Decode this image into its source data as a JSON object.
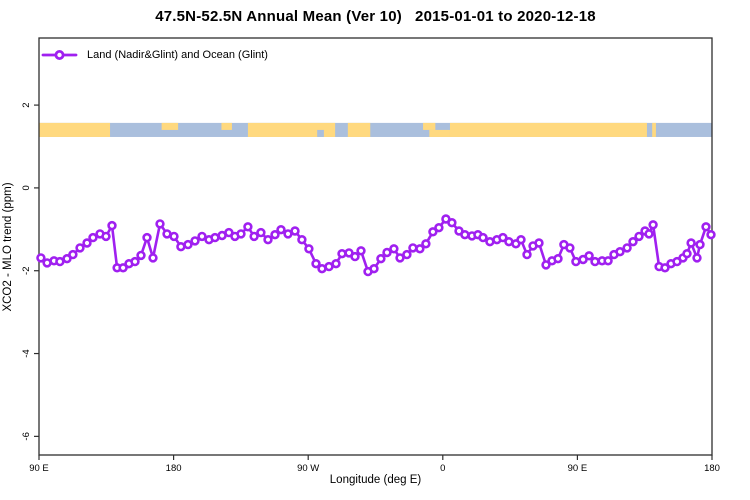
{
  "header": {
    "title": "47.5N-52.5N Annual Mean (Ver 10)   2015-01-01 to 2020-12-18"
  },
  "legend": {
    "label": "Land (Nadir&Glint) and Ocean (Glint)",
    "marker": "open-circle-on-line"
  },
  "colors": {
    "series": "#a020f0",
    "marker_fill": "#ffffff",
    "land": "#ffd97f",
    "ocean": "#aabfdd",
    "frame": "#2e2e2e",
    "text": "#000000"
  },
  "chart_data": {
    "type": "line",
    "title": "47.5N-52.5N Annual Mean (Ver 10)   2015-01-01 to 2020-12-18",
    "xlabel": "Longitude (deg E)",
    "ylabel": "XCO2 - MLO trend (ppm)",
    "legend_position": "top-left",
    "grid": false,
    "x_axis_note": "longitude axis spans 450 degrees wrapping: 90E -> 180 -> 90W -> 0 -> 90E -> 180; stored x is axis degree 90..540",
    "xlim_axis_deg": [
      90,
      540
    ],
    "ylim": [
      -6.45,
      3.62
    ],
    "x_ticks": [
      {
        "pos": 90,
        "label": "90 E"
      },
      {
        "pos": 180,
        "label": "180"
      },
      {
        "pos": 270,
        "label": "90 W"
      },
      {
        "pos": 360,
        "label": "0"
      },
      {
        "pos": 450,
        "label": "90 E"
      },
      {
        "pos": 540,
        "label": "180"
      }
    ],
    "y_ticks": [
      {
        "pos": 2,
        "label": "2"
      },
      {
        "pos": 0,
        "label": "0"
      },
      {
        "pos": -2,
        "label": "-2"
      },
      {
        "pos": -4,
        "label": "-4"
      },
      {
        "pos": -6,
        "label": "-6"
      }
    ],
    "map_band": {
      "description": "land/ocean mask strip for latitude band 47.5N-52.5N",
      "y_range": [
        1.23,
        1.57
      ],
      "land_segments": [
        {
          "from": 90,
          "to": 137.5,
          "part": "full"
        },
        {
          "from": 172,
          "to": 183,
          "part": "top"
        },
        {
          "from": 212,
          "to": 219,
          "part": "top"
        },
        {
          "from": 229.7,
          "to": 288,
          "part": "full"
        },
        {
          "from": 296.5,
          "to": 311.5,
          "part": "full"
        },
        {
          "from": 346.8,
          "to": 355,
          "part": "top"
        },
        {
          "from": 351,
          "to": 364.8,
          "part": "bottom"
        },
        {
          "from": 364.8,
          "to": 496.5,
          "part": "full"
        },
        {
          "from": 500,
          "to": 502.5,
          "part": "full"
        }
      ],
      "ocean_notches": [
        {
          "from": 276,
          "to": 280.5,
          "part": "bottom"
        }
      ]
    },
    "series": [
      {
        "name": "Land (Nadir&Glint) and Ocean (Glint)",
        "marker": "open-circle",
        "color": "#a020f0",
        "points": [
          [
            91.3,
            -1.69
          ],
          [
            95.4,
            -1.81
          ],
          [
            100,
            -1.76
          ],
          [
            104,
            -1.78
          ],
          [
            108.7,
            -1.71
          ],
          [
            112.7,
            -1.61
          ],
          [
            117.4,
            -1.45
          ],
          [
            122.1,
            -1.33
          ],
          [
            126.1,
            -1.2
          ],
          [
            130.8,
            -1.11
          ],
          [
            134.8,
            -1.17
          ],
          [
            138.8,
            -0.91
          ],
          [
            142.2,
            -1.93
          ],
          [
            146.2,
            -1.93
          ],
          [
            150.2,
            -1.83
          ],
          [
            154.2,
            -1.78
          ],
          [
            158.2,
            -1.63
          ],
          [
            162.2,
            -1.2
          ],
          [
            166.2,
            -1.69
          ],
          [
            170.9,
            -0.87
          ],
          [
            175.6,
            -1.11
          ],
          [
            180.3,
            -1.17
          ],
          [
            184.9,
            -1.42
          ],
          [
            189.6,
            -1.37
          ],
          [
            194.3,
            -1.28
          ],
          [
            199,
            -1.17
          ],
          [
            203.7,
            -1.25
          ],
          [
            207.7,
            -1.2
          ],
          [
            212.4,
            -1.15
          ],
          [
            217,
            -1.08
          ],
          [
            221,
            -1.17
          ],
          [
            225.1,
            -1.11
          ],
          [
            229.7,
            -0.94
          ],
          [
            233.8,
            -1.17
          ],
          [
            238.4,
            -1.08
          ],
          [
            243.1,
            -1.25
          ],
          [
            247.8,
            -1.13
          ],
          [
            251.8,
            -1.01
          ],
          [
            256.5,
            -1.11
          ],
          [
            261.2,
            -1.04
          ],
          [
            265.8,
            -1.25
          ],
          [
            270.5,
            -1.47
          ],
          [
            275.2,
            -1.83
          ],
          [
            279.2,
            -1.95
          ],
          [
            283.9,
            -1.9
          ],
          [
            288.6,
            -1.83
          ],
          [
            292.6,
            -1.59
          ],
          [
            297.3,
            -1.57
          ],
          [
            301.3,
            -1.66
          ],
          [
            305.3,
            -1.52
          ],
          [
            310,
            -2.02
          ],
          [
            314,
            -1.95
          ],
          [
            318.6,
            -1.71
          ],
          [
            322.7,
            -1.56
          ],
          [
            327.3,
            -1.47
          ],
          [
            331.4,
            -1.69
          ],
          [
            336,
            -1.61
          ],
          [
            340,
            -1.45
          ],
          [
            344.7,
            -1.47
          ],
          [
            348.7,
            -1.35
          ],
          [
            353.4,
            -1.06
          ],
          [
            357.4,
            -0.96
          ],
          [
            362.1,
            -0.75
          ],
          [
            366.1,
            -0.84
          ],
          [
            370.8,
            -1.04
          ],
          [
            374.8,
            -1.13
          ],
          [
            379.5,
            -1.16
          ],
          [
            383.5,
            -1.13
          ],
          [
            386.9,
            -1.2
          ],
          [
            391.5,
            -1.3
          ],
          [
            396.2,
            -1.25
          ],
          [
            400.2,
            -1.2
          ],
          [
            404.2,
            -1.3
          ],
          [
            408.9,
            -1.35
          ],
          [
            412.3,
            -1.25
          ],
          [
            416.3,
            -1.61
          ],
          [
            420.3,
            -1.4
          ],
          [
            424.3,
            -1.33
          ],
          [
            429,
            -1.86
          ],
          [
            433,
            -1.76
          ],
          [
            437,
            -1.71
          ],
          [
            441,
            -1.37
          ],
          [
            445,
            -1.45
          ],
          [
            449,
            -1.78
          ],
          [
            453.8,
            -1.73
          ],
          [
            457.8,
            -1.64
          ],
          [
            461.8,
            -1.78
          ],
          [
            466.5,
            -1.76
          ],
          [
            470.5,
            -1.76
          ],
          [
            474.5,
            -1.61
          ],
          [
            478.5,
            -1.54
          ],
          [
            483.2,
            -1.45
          ],
          [
            487.2,
            -1.3
          ],
          [
            491.2,
            -1.17
          ],
          [
            495.2,
            -1.04
          ],
          [
            497.9,
            -1.11
          ],
          [
            500.6,
            -0.89
          ],
          [
            504.6,
            -1.9
          ],
          [
            508.6,
            -1.93
          ],
          [
            512.6,
            -1.83
          ],
          [
            516.6,
            -1.78
          ],
          [
            520.6,
            -1.69
          ],
          [
            523.3,
            -1.59
          ],
          [
            526,
            -1.33
          ],
          [
            530,
            -1.69
          ],
          [
            532,
            -1.37
          ],
          [
            536,
            -0.94
          ],
          [
            539.3,
            -1.13
          ]
        ]
      }
    ]
  }
}
